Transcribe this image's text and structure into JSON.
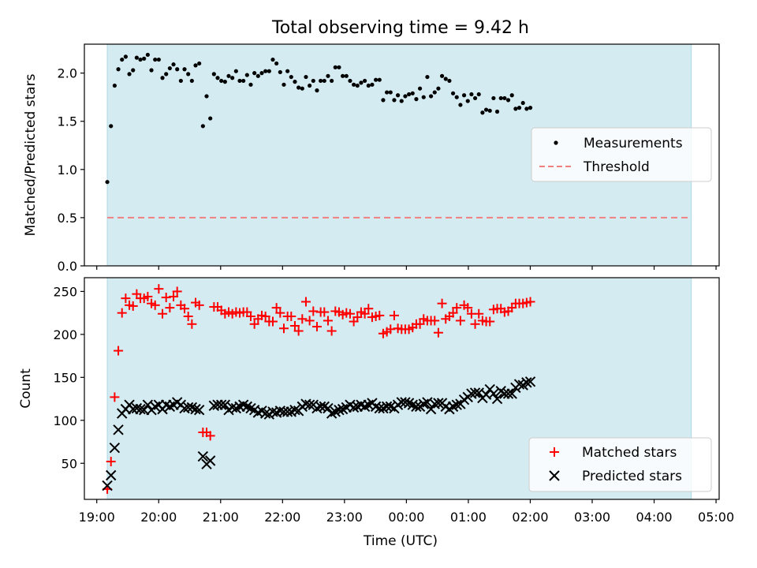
{
  "figure": {
    "title": "Total observing time = 9.42 h"
  },
  "chart_data": [
    {
      "type": "scatter",
      "panel": "top",
      "ylabel": "Matched/Predicted stars",
      "ylim": [
        0,
        2.3
      ],
      "yticks": [
        "0.0",
        "0.5",
        "1.0",
        "1.5",
        "2.0"
      ],
      "xlim": [
        18.8,
        29.05
      ],
      "shaded_range": [
        19.17,
        28.6
      ],
      "shade_color": "#add8e6",
      "legend_position": "center-right",
      "series": [
        {
          "name": "Measurements",
          "kind": "points",
          "color": "#000000",
          "x_start": 19.17,
          "x_step": 0.0594,
          "values": [
            0.87,
            1.45,
            1.87,
            2.04,
            2.14,
            2.17,
            1.99,
            2.03,
            2.16,
            2.14,
            2.15,
            2.19,
            2.03,
            2.14,
            2.14,
            1.95,
            1.99,
            2.05,
            2.09,
            2.04,
            1.92,
            2.04,
            1.99,
            1.92,
            2.08,
            2.1,
            1.45,
            1.76,
            1.53,
            1.99,
            1.95,
            1.92,
            1.91,
            1.97,
            1.95,
            2.02,
            1.92,
            1.92,
            1.98,
            1.88,
            2.0,
            1.97,
            2.0,
            2.02,
            2.02,
            2.14,
            2.1,
            2.01,
            1.88,
            2.02,
            1.96,
            1.91,
            1.85,
            1.84,
            1.96,
            1.87,
            1.92,
            1.82,
            1.92,
            1.92,
            1.97,
            1.92,
            2.06,
            2.06,
            1.97,
            1.97,
            1.92,
            1.88,
            1.87,
            1.9,
            1.92,
            1.87,
            1.88,
            1.93,
            1.93,
            1.72,
            1.8,
            1.8,
            1.72,
            1.77,
            1.71,
            1.76,
            1.78,
            1.79,
            1.73,
            1.84,
            1.75,
            1.96,
            1.76,
            1.8,
            1.84,
            1.97,
            1.94,
            1.92,
            1.79,
            1.75,
            1.67,
            1.77,
            1.71,
            1.78,
            1.74,
            1.78,
            1.59,
            1.62,
            1.61,
            1.74,
            1.6,
            1.74,
            1.74,
            1.72,
            1.77,
            1.63,
            1.64,
            1.69,
            1.63,
            1.64
          ]
        },
        {
          "name": "Threshold",
          "kind": "dashed-line",
          "color": "#f08080",
          "value": 0.5
        }
      ]
    },
    {
      "type": "scatter",
      "panel": "bottom",
      "xlabel": "Time (UTC)",
      "ylabel": "Count",
      "ylim": [
        8,
        266
      ],
      "yticks": [
        "50",
        "100",
        "150",
        "200",
        "250"
      ],
      "xlim": [
        18.8,
        29.05
      ],
      "xticks": [
        {
          "value": 19,
          "label": "19:00"
        },
        {
          "value": 20,
          "label": "20:00"
        },
        {
          "value": 21,
          "label": "21:00"
        },
        {
          "value": 22,
          "label": "22:00"
        },
        {
          "value": 23,
          "label": "23:00"
        },
        {
          "value": 24,
          "label": "00:00"
        },
        {
          "value": 25,
          "label": "01:00"
        },
        {
          "value": 26,
          "label": "02:00"
        },
        {
          "value": 27,
          "label": "03:00"
        },
        {
          "value": 28,
          "label": "04:00"
        },
        {
          "value": 29,
          "label": "05:00"
        }
      ],
      "shaded_range": [
        19.17,
        28.6
      ],
      "shade_color": "#add8e6",
      "legend_position": "lower-right",
      "series": [
        {
          "name": "Matched stars",
          "marker": "plus",
          "color": "#ff0000",
          "x_start": 19.17,
          "x_step": 0.0594,
          "values": [
            20,
            52,
            127,
            181,
            225,
            242,
            234,
            233,
            247,
            242,
            242,
            244,
            236,
            234,
            253,
            224,
            243,
            231,
            244,
            250,
            234,
            230,
            221,
            212,
            237,
            234,
            86,
            86,
            82,
            232,
            232,
            228,
            224,
            226,
            224,
            226,
            225,
            226,
            226,
            221,
            212,
            218,
            222,
            221,
            215,
            215,
            231,
            225,
            207,
            221,
            221,
            210,
            204,
            218,
            238,
            216,
            227,
            209,
            226,
            226,
            216,
            204,
            227,
            226,
            223,
            225,
            224,
            215,
            220,
            226,
            224,
            230,
            220,
            221,
            222,
            201,
            203,
            206,
            222,
            207,
            206,
            206,
            206,
            208,
            212,
            212,
            218,
            216,
            216,
            216,
            202,
            236,
            218,
            221,
            225,
            231,
            216,
            234,
            231,
            224,
            212,
            224,
            216,
            215,
            215,
            229,
            230,
            230,
            226,
            227,
            231,
            236,
            236,
            236,
            237,
            238
          ]
        },
        {
          "name": "Predicted stars",
          "marker": "x",
          "color": "#000000",
          "x_start": 19.17,
          "x_step": 0.0594,
          "values": [
            24,
            36,
            68,
            89,
            108,
            113,
            118,
            113,
            114,
            113,
            112,
            118,
            112,
            116,
            118,
            113,
            118,
            116,
            118,
            121,
            118,
            114,
            115,
            115,
            113,
            112,
            58,
            49,
            53,
            117,
            118,
            118,
            118,
            112,
            115,
            114,
            116,
            118,
            116,
            114,
            112,
            109,
            111,
            108,
            107,
            110,
            109,
            111,
            110,
            110,
            110,
            112,
            111,
            116,
            119,
            118,
            118,
            114,
            116,
            116,
            114,
            108,
            110,
            112,
            113,
            115,
            118,
            115,
            116,
            118,
            116,
            118,
            120,
            116,
            114,
            114,
            116,
            116,
            114,
            118,
            121,
            121,
            120,
            118,
            116,
            116,
            119,
            121,
            113,
            119,
            120,
            120,
            116,
            113,
            116,
            118,
            119,
            124,
            127,
            131,
            132,
            132,
            126,
            130,
            136,
            131,
            125,
            134,
            131,
            131,
            131,
            138,
            142,
            141,
            144,
            145
          ]
        }
      ]
    }
  ]
}
